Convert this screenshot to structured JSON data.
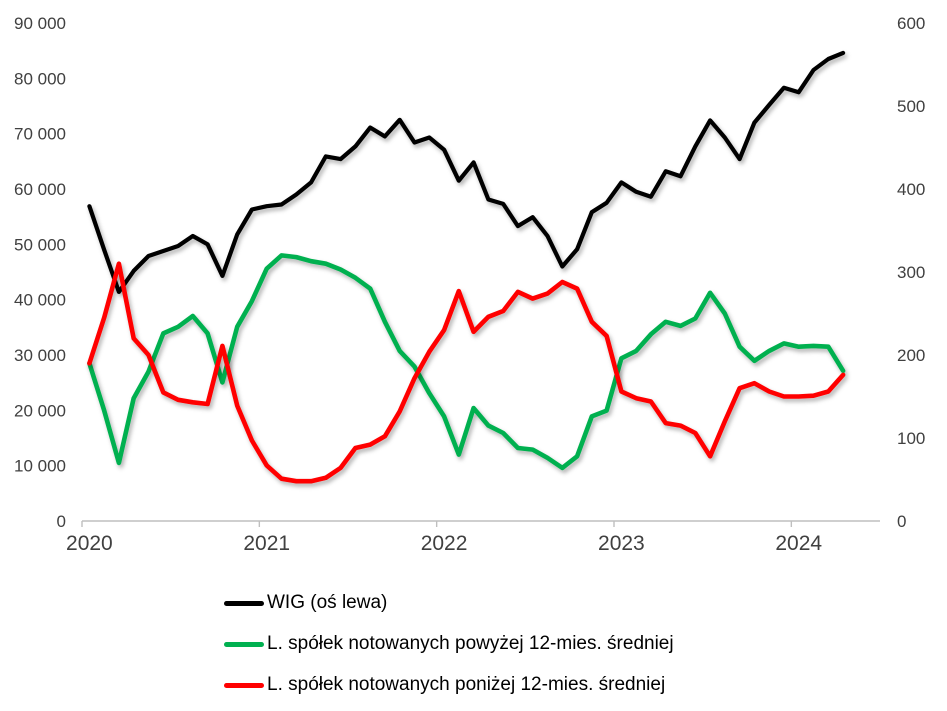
{
  "chart_data": {
    "type": "line",
    "title": "",
    "x_range": [
      "2020-01",
      "2024-04"
    ],
    "frequency": "monthly",
    "n_points": 52,
    "grid": false,
    "legend_position": "bottom-left",
    "background": "#ffffff",
    "axis_color": "#bfbfbf",
    "x_axis": {
      "tick_labels": [
        "2020",
        "2021",
        "2022",
        "2023",
        "2024"
      ]
    },
    "left_axis": {
      "min": 0,
      "max": 90000,
      "step": 10000,
      "tick_labels": [
        "0",
        "10 000",
        "20 000",
        "30 000",
        "40 000",
        "50 000",
        "60 000",
        "70 000",
        "80 000",
        "90 000"
      ]
    },
    "right_axis": {
      "min": 0,
      "max": 600,
      "step": 100,
      "tick_labels": [
        "0",
        "100",
        "200",
        "300",
        "400",
        "500",
        "600"
      ]
    },
    "series": [
      {
        "id": "wig",
        "name": "WIG (oś lewa)",
        "axis": "left",
        "color": "#000000",
        "values": [
          56900,
          49000,
          41400,
          45200,
          47900,
          48800,
          49700,
          51500,
          50000,
          44300,
          51800,
          56300,
          56900,
          57200,
          59000,
          61200,
          65900,
          65400,
          67700,
          71100,
          69500,
          72500,
          68400,
          69300,
          67100,
          61500,
          64800,
          58100,
          57300,
          53300,
          54900,
          51500,
          46000,
          49100,
          55800,
          57500,
          61200,
          59500,
          58600,
          63200,
          62300,
          67700,
          72400,
          69300,
          65400,
          72000,
          75200,
          78300,
          77500,
          81500,
          83500,
          84600
        ]
      },
      {
        "id": "above-avg",
        "name": "L. spółek notowanych powyżej 12-mies. średniej",
        "axis": "right",
        "color": "#00B050",
        "values": [
          190,
          133,
          70,
          148,
          180,
          226,
          234,
          247,
          226,
          167,
          234,
          265,
          304,
          320,
          318,
          313,
          310,
          303,
          293,
          280,
          240,
          205,
          186,
          154,
          126,
          80,
          136,
          115,
          106,
          88,
          86,
          76,
          64,
          78,
          126,
          133,
          196,
          205,
          225,
          240,
          235,
          244,
          275,
          250,
          210,
          193,
          205,
          214,
          210,
          211,
          210,
          181
        ]
      },
      {
        "id": "below-avg",
        "name": "L. spółek notowanych poniżej 12-mies. średniej",
        "axis": "right",
        "color": "#FF0000",
        "values": [
          190,
          245,
          310,
          220,
          200,
          155,
          146,
          143,
          141,
          211,
          139,
          97,
          67,
          51,
          48,
          48,
          52,
          64,
          88,
          92,
          102,
          132,
          172,
          204,
          230,
          277,
          228,
          246,
          253,
          276,
          268,
          274,
          288,
          280,
          240,
          223,
          156,
          148,
          144,
          118,
          115,
          106,
          78,
          120,
          160,
          166,
          156,
          150,
          150,
          151,
          156,
          176
        ]
      }
    ]
  }
}
